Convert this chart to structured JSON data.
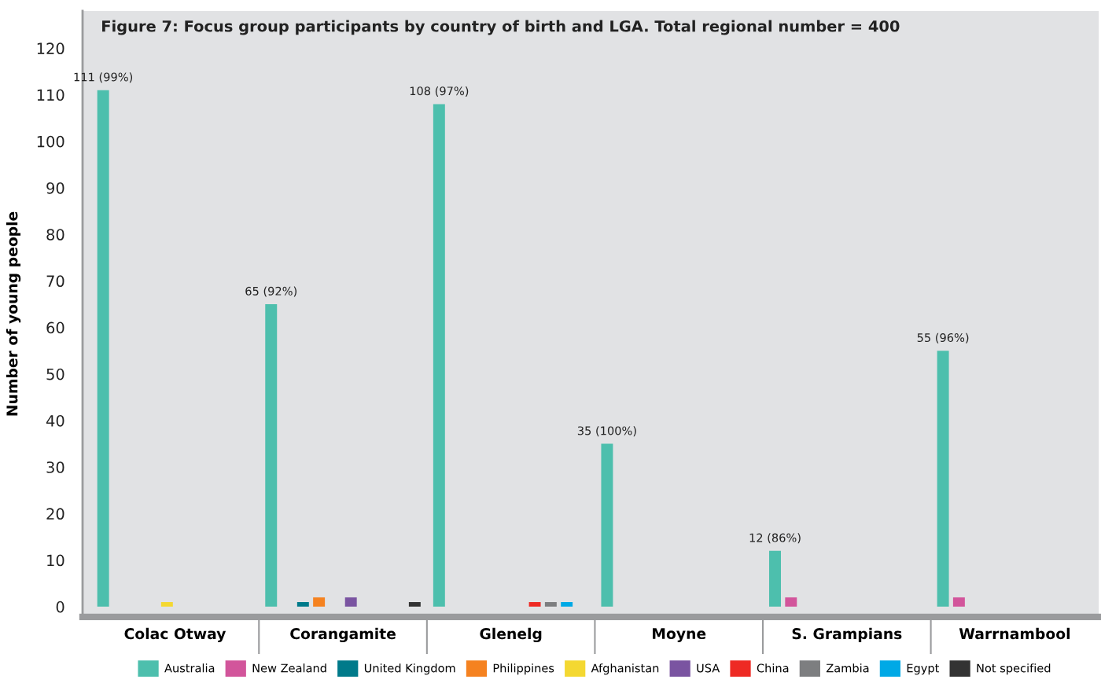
{
  "chart_data": {
    "type": "bar",
    "title": "Figure 7: Focus group participants by country of birth and LGA. Total regional number = 400",
    "ylabel": "Number of young people",
    "categories": [
      "Colac Otway",
      "Corangamite",
      "Glenelg",
      "Moyne",
      "S. Grampians",
      "Warrnambool"
    ],
    "series": [
      {
        "name": "Australia",
        "color": "#4dbfad",
        "values": [
          111,
          65,
          108,
          35,
          12,
          55
        ],
        "value_labels": [
          "111 (99%)",
          "65 (92%)",
          "108 (97%)",
          "35 (100%)",
          "12 (86%)",
          "55 (96%)"
        ]
      },
      {
        "name": "New Zealand",
        "color": "#d2559b",
        "values": [
          null,
          null,
          null,
          null,
          2,
          2
        ]
      },
      {
        "name": "United Kingdom",
        "color": "#007a8a",
        "values": [
          null,
          1,
          null,
          null,
          null,
          null
        ]
      },
      {
        "name": "Philippines",
        "color": "#f58220",
        "values": [
          null,
          2,
          null,
          null,
          null,
          null
        ]
      },
      {
        "name": "Afghanistan",
        "color": "#f4d831",
        "values": [
          1,
          null,
          null,
          null,
          null,
          null
        ]
      },
      {
        "name": "USA",
        "color": "#7a54a1",
        "values": [
          null,
          2,
          null,
          null,
          null,
          null
        ]
      },
      {
        "name": "China",
        "color": "#ee2a24",
        "values": [
          null,
          null,
          1,
          null,
          null,
          null
        ]
      },
      {
        "name": "Zambia",
        "color": "#7d7e80",
        "values": [
          null,
          null,
          1,
          null,
          null,
          null
        ]
      },
      {
        "name": "Egypt",
        "color": "#00a9e6",
        "values": [
          null,
          null,
          1,
          null,
          null,
          null
        ]
      },
      {
        "name": "Not specified",
        "color": "#333333",
        "values": [
          null,
          1,
          null,
          null,
          null,
          null
        ]
      }
    ],
    "ylim": [
      -2.2,
      128
    ],
    "yticks": [
      0,
      10,
      20,
      30,
      40,
      50,
      60,
      70,
      80,
      90,
      100,
      110,
      120
    ],
    "grid": false,
    "legend": "bottom"
  }
}
